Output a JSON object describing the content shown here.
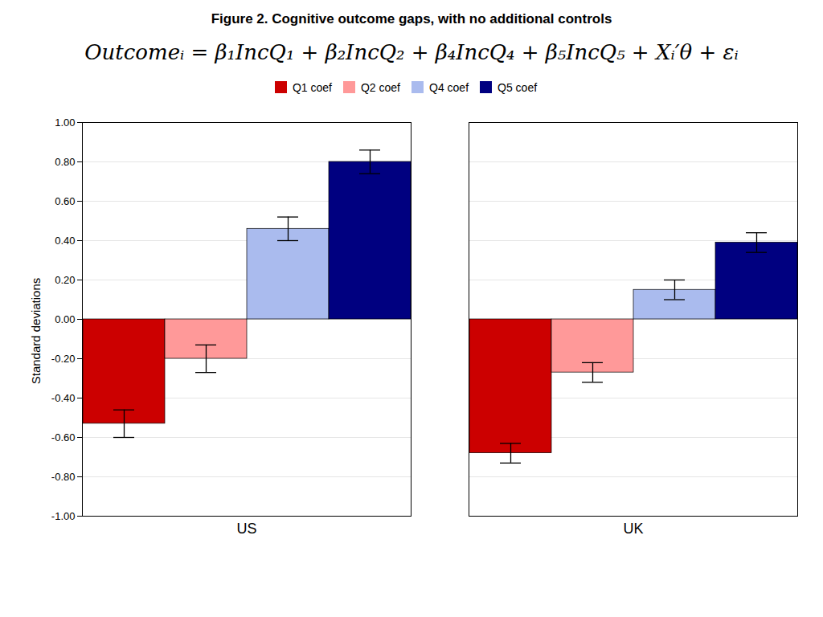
{
  "chart_data": {
    "type": "bar",
    "title": "Figure 2. Cognitive outcome gaps, with no additional controls",
    "annotations": [
      "Outcomeᵢ = β₁IncQ₁ + β₂IncQ₂ + β₄IncQ₄ + β₅IncQ₅ + Xᵢ′θ + εᵢ"
    ],
    "ylabel": "Standard deviations",
    "categories": [
      "US",
      "UK"
    ],
    "series": [
      {
        "name": "Q1 coef",
        "color": "#cc0000",
        "values": [
          -0.53,
          -0.68
        ],
        "errors": [
          0.07,
          0.05
        ]
      },
      {
        "name": "Q2 coef",
        "color": "#ff9999",
        "values": [
          -0.2,
          -0.27
        ],
        "errors": [
          0.07,
          0.05
        ]
      },
      {
        "name": "Q4 coef",
        "color": "#aabbee",
        "values": [
          0.46,
          0.15
        ],
        "errors": [
          0.06,
          0.05
        ]
      },
      {
        "name": "Q5 coef",
        "color": "#000080",
        "values": [
          0.8,
          0.39
        ],
        "errors": [
          0.06,
          0.05
        ]
      }
    ],
    "ylim": [
      -1.0,
      1.0
    ],
    "yticks": [
      {
        "value": -1.0,
        "label": "-1.00"
      },
      {
        "value": -0.8,
        "label": "-0.80"
      },
      {
        "value": -0.6,
        "label": "-0.60"
      },
      {
        "value": -0.4,
        "label": "-0.40"
      },
      {
        "value": -0.2,
        "label": "-0.20"
      },
      {
        "value": 0,
        "label": "0.00"
      },
      {
        "value": 0.2,
        "label": "0.20"
      },
      {
        "value": 0.4,
        "label": "0.40"
      },
      {
        "value": 0.6,
        "label": "0.60"
      },
      {
        "value": 0.8,
        "label": "0.80"
      },
      {
        "value": 1.0,
        "label": "1.00"
      }
    ],
    "grid": true,
    "legend": "top"
  }
}
